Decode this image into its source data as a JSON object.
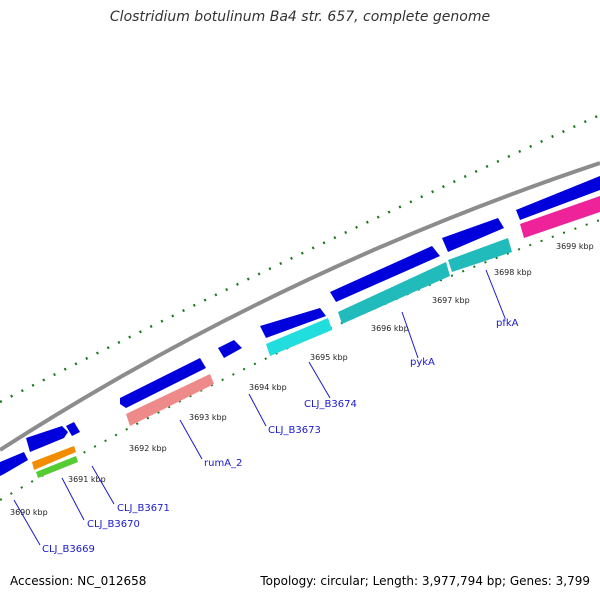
{
  "title": "Clostridium botulinum Ba4 str. 657, complete genome",
  "footer": {
    "accession": "Accession: NC_012658",
    "summary": "Topology: circular; Length: 3,977,794 bp; Genes: 3,799"
  },
  "kbp_labels": [
    "3690 kbp",
    "3691 kbp",
    "3692 kbp",
    "3693 kbp",
    "3694 kbp",
    "3695 kbp",
    "3696 kbp",
    "3697 kbp",
    "3698 kbp",
    "3699 kbp"
  ],
  "gene_labels": [
    "CLJ_B3669",
    "CLJ_B3670",
    "CLJ_B3671",
    "rumA_2",
    "CLJ_B3673",
    "CLJ_B3674",
    "pykA",
    "pfkA"
  ],
  "colors": {
    "backbone": "#8c8c8c",
    "forward_cds": "#0000dd",
    "tick": "#1a7a1a",
    "orange": "#f28c00",
    "green": "#55cc33",
    "salmon": "#ef8a8a",
    "cyan": "#22dddd",
    "teal": "#22bbbb",
    "magenta": "#ee2299",
    "label": "#1a1acc"
  }
}
